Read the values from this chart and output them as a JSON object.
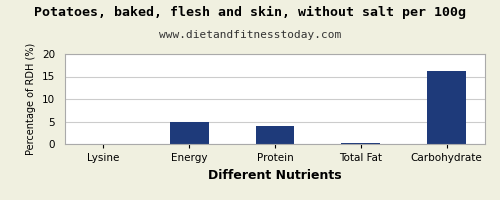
{
  "title": "Potatoes, baked, flesh and skin, without salt per 100g",
  "subtitle": "www.dietandfitnesstoday.com",
  "xlabel": "Different Nutrients",
  "ylabel": "Percentage of RDH (%)",
  "categories": [
    "Lysine",
    "Energy",
    "Protein",
    "Total Fat",
    "Carbohydrate"
  ],
  "values": [
    0,
    5.0,
    4.0,
    0.3,
    16.2
  ],
  "bar_color": "#1e3a7a",
  "ylim": [
    0,
    20
  ],
  "yticks": [
    0,
    5,
    10,
    15,
    20
  ],
  "bg_color": "#f0f0e0",
  "plot_bg_color": "#ffffff",
  "title_fontsize": 9.5,
  "subtitle_fontsize": 8,
  "xlabel_fontsize": 9,
  "ylabel_fontsize": 7,
  "tick_fontsize": 7.5
}
